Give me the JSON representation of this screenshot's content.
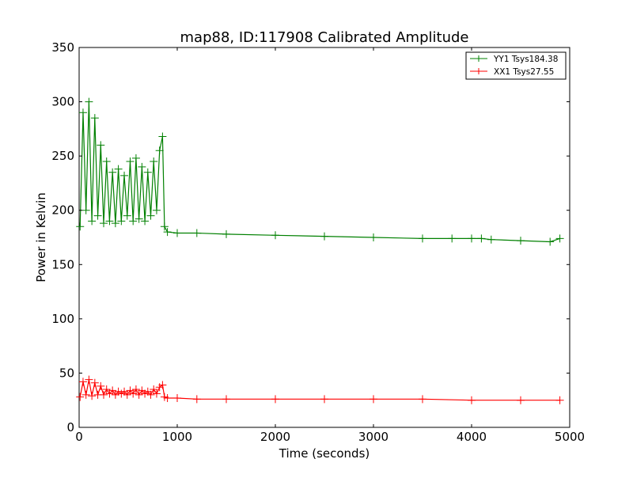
{
  "chart_data": {
    "type": "line",
    "title": "map88, ID:117908 Calibrated Amplitude",
    "xlabel": "Time (seconds)",
    "ylabel": "Power in Kelvin",
    "xlim": [
      0,
      5000
    ],
    "ylim": [
      0,
      350
    ],
    "xticks": [
      "0",
      "1000",
      "2000",
      "3000",
      "4000",
      "5000"
    ],
    "yticks": [
      "0",
      "50",
      "100",
      "150",
      "200",
      "250",
      "300",
      "350"
    ],
    "grid": false,
    "legend_position": "top-right",
    "marker": "+",
    "series": [
      {
        "name": "YY1 Tsys184.38",
        "color": "#008000",
        "x": [
          10,
          40,
          70,
          100,
          130,
          160,
          190,
          220,
          250,
          280,
          310,
          340,
          370,
          400,
          430,
          460,
          490,
          520,
          550,
          580,
          610,
          640,
          670,
          700,
          730,
          760,
          790,
          820,
          850,
          870,
          900,
          1000,
          1200,
          1500,
          2000,
          2500,
          3000,
          3500,
          3800,
          4000,
          4100,
          4200,
          4500,
          4800,
          4900
        ],
        "values": [
          185,
          290,
          200,
          300,
          190,
          285,
          195,
          260,
          188,
          245,
          190,
          235,
          188,
          238,
          190,
          232,
          195,
          245,
          190,
          248,
          192,
          240,
          190,
          235,
          195,
          245,
          200,
          255,
          268,
          185,
          180,
          179,
          179,
          178,
          177,
          176,
          175,
          174,
          174,
          174,
          174,
          173,
          172,
          171,
          174
        ]
      },
      {
        "name": "XX1 Tsys27.55",
        "color": "#ff0000",
        "x": [
          10,
          40,
          70,
          100,
          130,
          160,
          190,
          220,
          250,
          280,
          310,
          340,
          370,
          400,
          430,
          460,
          490,
          520,
          550,
          580,
          610,
          640,
          670,
          700,
          730,
          760,
          790,
          820,
          850,
          870,
          900,
          1000,
          1200,
          1500,
          2000,
          2500,
          3000,
          3500,
          4000,
          4500,
          4900
        ],
        "values": [
          28,
          42,
          30,
          44,
          29,
          41,
          30,
          38,
          30,
          35,
          31,
          34,
          30,
          33,
          31,
          33,
          30,
          34,
          31,
          35,
          30,
          34,
          31,
          33,
          30,
          35,
          31,
          37,
          39,
          28,
          27,
          27,
          26,
          26,
          26,
          26,
          26,
          26,
          25,
          25,
          25
        ]
      }
    ]
  }
}
